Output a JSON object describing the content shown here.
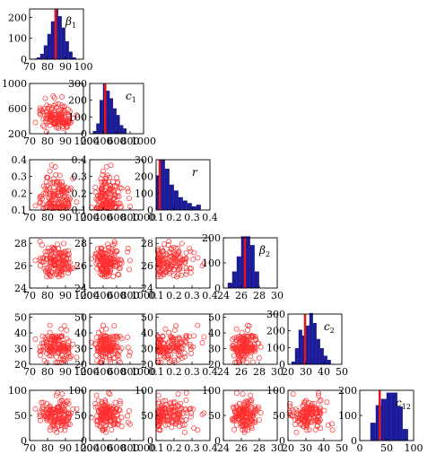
{
  "chart_data": {
    "type": "scatter-matrix",
    "title": "",
    "parameters": [
      {
        "key": "beta1",
        "label": "β",
        "sub": "1",
        "range": [
          70,
          100
        ],
        "ticks": [
          "70",
          "80",
          "90",
          "100"
        ]
      },
      {
        "key": "c1",
        "label": "c",
        "sub": "1",
        "range": [
          200,
          1000
        ],
        "ticks": [
          "200",
          "400",
          "600",
          "800",
          "1000"
        ]
      },
      {
        "key": "r",
        "label": "r",
        "sub": "",
        "range": [
          0.1,
          0.4
        ],
        "ticks": [
          "0.1",
          "0.2",
          "0.3",
          "0.4"
        ]
      },
      {
        "key": "beta2",
        "label": "β",
        "sub": "2",
        "range": [
          24,
          30
        ],
        "ticks": [
          "24",
          "26",
          "28",
          "30"
        ]
      },
      {
        "key": "c2",
        "label": "c",
        "sub": "2",
        "range": [
          20,
          50
        ],
        "ticks": [
          "20",
          "30",
          "40",
          "50"
        ]
      },
      {
        "key": "c12",
        "label": "c",
        "sub": "12",
        "range": [
          0,
          100
        ],
        "ticks": [
          "0",
          "50",
          "100"
        ]
      }
    ],
    "row_y_ticks": {
      "beta1": [
        "0",
        "100",
        "200"
      ],
      "c1": [
        "200",
        "600",
        "1000"
      ],
      "r": [
        "0.1",
        "0.2",
        "0.3",
        "0.4"
      ],
      "beta2": [
        "24",
        "26",
        "28"
      ],
      "c2": [
        "20",
        "30",
        "40",
        "50"
      ],
      "c12": [
        "0",
        "50",
        "100"
      ]
    },
    "row_y_ranges": {
      "beta1": [
        0,
        240
      ],
      "c1": [
        200,
        1000
      ],
      "r": [
        0.1,
        0.4
      ],
      "beta2": [
        24,
        28.5
      ],
      "c2": [
        20,
        52
      ],
      "c12": [
        0,
        100
      ]
    },
    "histograms": {
      "beta1": {
        "bin_edges": [
          72,
          74,
          76,
          78,
          80,
          82,
          84,
          86,
          88,
          90,
          92,
          94,
          96
        ],
        "counts": [
          2,
          8,
          25,
          65,
          120,
          180,
          240,
          205,
          150,
          85,
          35,
          8
        ],
        "ylim": [
          0,
          240
        ],
        "marker": 84.5
      },
      "c1": {
        "bin_edges": [
          250,
          300,
          350,
          400,
          450,
          500,
          550,
          600,
          650,
          700,
          750
        ],
        "counts": [
          15,
          60,
          200,
          295,
          255,
          210,
          150,
          110,
          50,
          30
        ],
        "ylim": [
          0,
          300
        ],
        "marker": 430
      },
      "r": {
        "bin_edges": [
          0.1,
          0.125,
          0.15,
          0.175,
          0.2,
          0.225,
          0.25,
          0.275,
          0.3,
          0.325,
          0.35
        ],
        "counts": [
          205,
          300,
          245,
          150,
          115,
          75,
          55,
          40,
          20,
          30
        ],
        "ylim": [
          0,
          300
        ],
        "marker": 0.12
      },
      "beta2": {
        "bin_edges": [
          24.5,
          25,
          25.5,
          26,
          26.5,
          27,
          27.5,
          28
        ],
        "counts": [
          20,
          65,
          125,
          205,
          205,
          170,
          65
        ],
        "ylim": [
          0,
          200
        ],
        "marker": 26.4
      },
      "c2": {
        "bin_edges": [
          22,
          24,
          26,
          28,
          30,
          32,
          34,
          36,
          38,
          40,
          42,
          44
        ],
        "counts": [
          15,
          95,
          205,
          170,
          230,
          305,
          245,
          150,
          95,
          50,
          25
        ],
        "ylim": [
          0,
          300
        ],
        "marker": 29.5
      },
      "c12": {
        "bin_edges": [
          20,
          30,
          40,
          50,
          60,
          70,
          80,
          90
        ],
        "counts": [
          70,
          140,
          165,
          190,
          190,
          135,
          45
        ],
        "ylim": [
          0,
          200
        ],
        "marker": 37
      }
    },
    "scatter_points_per_panel": 150,
    "scatter_marker": "open-circle",
    "hist_color": "#1c1c9e",
    "marker_color": "#e8141a",
    "scatter_color": "#ff3030",
    "grid": false,
    "legend": "none"
  }
}
